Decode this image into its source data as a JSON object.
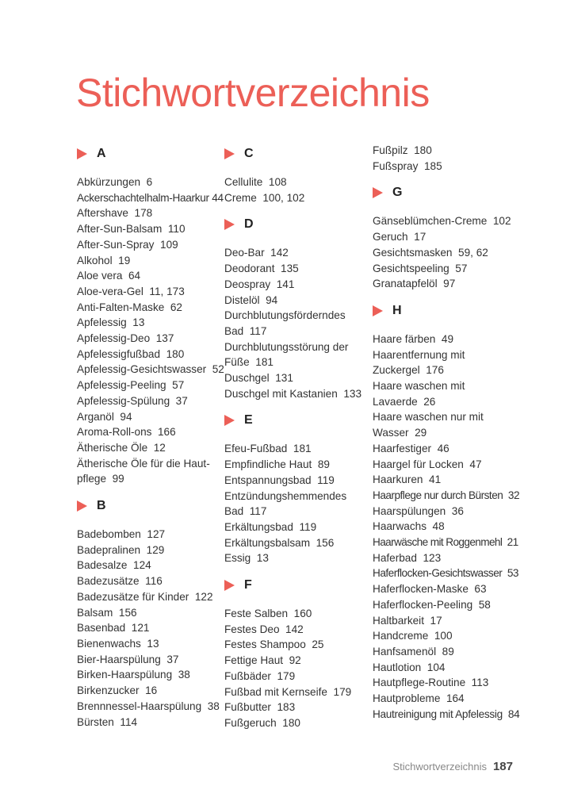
{
  "title": "Stichwortverzeichnis",
  "columns": [
    [
      {
        "letter": "A"
      },
      "Abkürzungen  6",
      "Ackerschachtelhalm-Haarkur 44",
      "Aftershave  178",
      "After-Sun-Balsam  110",
      "After-Sun-Spray  109",
      "Alkohol  19",
      "Aloe vera  64",
      "Aloe-vera-Gel  11, 173",
      "Anti-Falten-Maske  62",
      "Apfelessig  13",
      "Apfelessig-Deo  137",
      "Apfelessigfußbad  180",
      "Apfelessig-Gesichtswasser  52",
      "Apfelessig-Peeling  57",
      "Apfelessig-Spülung  37",
      "Arganöl  94",
      "Aroma-Roll-ons  166",
      "Ätherische Öle  12",
      "Ätherische Öle für die Haut-\npflege  99",
      {
        "letter": "B"
      },
      "Badebomben  127",
      "Badepralinen  129",
      "Badesalze  124",
      "Badezusätze  116",
      "Badezusätze für Kinder  122",
      "Balsam  156",
      "Basenbad  121",
      "Bienenwachs  13",
      "Bier-Haarspülung  37",
      "Birken-Haarspülung  38",
      "Birkenzucker  16",
      "Brennnessel-Haarspülung  38",
      "Bürsten  114"
    ],
    [
      {
        "letter": "C"
      },
      "Cellulite  108",
      "Creme  100, 102",
      {
        "letter": "D"
      },
      "Deo-Bar  142",
      "Deodorant  135",
      "Deospray  141",
      "Distelöl  94",
      "Durchblutungsförderndes\nBad  117",
      "Durchblutungsstörung der\nFüße  181",
      "Duschgel  131",
      "Duschgel mit Kastanien  133",
      {
        "letter": "E"
      },
      "Efeu-Fußbad  181",
      "Empfindliche Haut  89",
      "Entspannungsbad  119",
      "Entzündungshemmendes\nBad  117",
      "Erkältungsbad  119",
      "Erkältungsbalsam  156",
      "Essig  13",
      {
        "letter": "F"
      },
      "Feste Salben  160",
      "Festes Deo  142",
      "Festes Shampoo  25",
      "Fettige Haut  92",
      "Fußbäder  179",
      "Fußbad mit Kernseife  179",
      "Fußbutter  183",
      "Fußgeruch  180"
    ],
    [
      "Fußpilz  180",
      "Fußspray  185",
      {
        "letter": "G"
      },
      "Gänseblümchen-Creme  102",
      "Geruch  17",
      "Gesichtsmasken  59, 62",
      "Gesichtspeeling  57",
      "Granatapfelöl  97",
      {
        "letter": "H"
      },
      "Haare färben  49",
      "Haarentfernung mit\nZuckergel  176",
      "Haare waschen mit\nLavaerde  26",
      "Haare waschen nur mit\nWasser  29",
      "Haarfestiger  46",
      "Haargel für Locken  47",
      "Haarkuren  41",
      "Haarpflege nur durch Bürsten  32",
      "Haarspülungen  36",
      "Haarwachs  48",
      "Haarwäsche mit Roggenmehl  21",
      "Haferbad  123",
      "Haferflocken-Gesichtswasser  53",
      "Haferflocken-Maske  63",
      "Haferflocken-Peeling  58",
      "Haltbarkeit  17",
      "Handcreme  100",
      "Hanfsamenöl  89",
      "Hautlotion  104",
      "Hautpflege-Routine  113",
      "Hautprobleme  164",
      "Hautreinigung mit Apfelessig  84"
    ]
  ],
  "footer": {
    "label": "Stichwortverzeichnis",
    "page": "187"
  },
  "colors": {
    "accent": "#ec5f57"
  }
}
